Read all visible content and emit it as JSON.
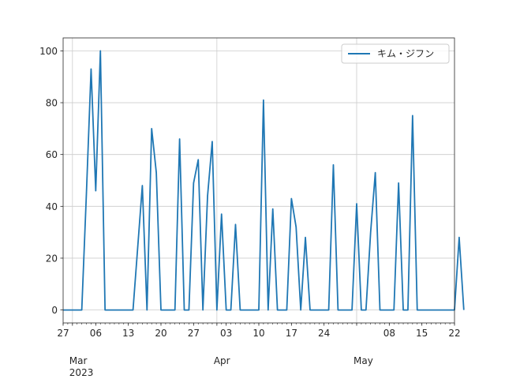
{
  "chart_data": {
    "type": "line",
    "title": "",
    "xlabel": "",
    "ylabel": "",
    "x_range": [
      "2023-02-27",
      "2023-05-22"
    ],
    "ylim": [
      -5,
      105
    ],
    "y_ticks": [
      0,
      20,
      40,
      60,
      80,
      100
    ],
    "x_major_ticks": [
      {
        "date": "2023-02-27",
        "label": "27"
      },
      {
        "date": "2023-03-06",
        "label": "06"
      },
      {
        "date": "2023-03-13",
        "label": "13"
      },
      {
        "date": "2023-03-20",
        "label": "20"
      },
      {
        "date": "2023-03-27",
        "label": "27"
      },
      {
        "date": "2023-04-03",
        "label": "03"
      },
      {
        "date": "2023-04-10",
        "label": "10"
      },
      {
        "date": "2023-04-17",
        "label": "17"
      },
      {
        "date": "2023-04-24",
        "label": "24"
      },
      {
        "date": "2023-05-08",
        "label": "08"
      },
      {
        "date": "2023-05-15",
        "label": "15"
      },
      {
        "date": "2023-05-22",
        "label": "22"
      }
    ],
    "x_month_labels": [
      {
        "date": "2023-03-01",
        "label": "Mar",
        "sublabel": "2023"
      },
      {
        "date": "2023-04-01",
        "label": "Apr",
        "sublabel": ""
      },
      {
        "date": "2023-05-01",
        "label": "May",
        "sublabel": ""
      }
    ],
    "grid": true,
    "legend_position": "top-right",
    "series": [
      {
        "name": "キム・ジフン",
        "color": "#1f77b4",
        "start": "2023-02-27",
        "values": [
          0,
          0,
          0,
          0,
          0,
          45,
          93,
          46,
          100,
          0,
          0,
          0,
          0,
          0,
          0,
          0,
          24,
          48,
          0,
          70,
          53,
          0,
          0,
          0,
          0,
          66,
          0,
          0,
          49,
          58,
          0,
          44,
          65,
          0,
          37,
          0,
          0,
          33,
          0,
          0,
          0,
          0,
          0,
          81,
          0,
          39,
          0,
          0,
          0,
          43,
          32,
          0,
          28,
          0,
          0,
          0,
          0,
          0,
          56,
          0,
          0,
          0,
          0,
          41,
          0,
          0,
          30,
          53,
          0,
          0,
          0,
          0,
          49,
          0,
          0,
          75,
          0,
          0,
          0,
          0,
          0,
          0,
          0,
          0,
          0,
          28,
          0
        ]
      }
    ]
  }
}
